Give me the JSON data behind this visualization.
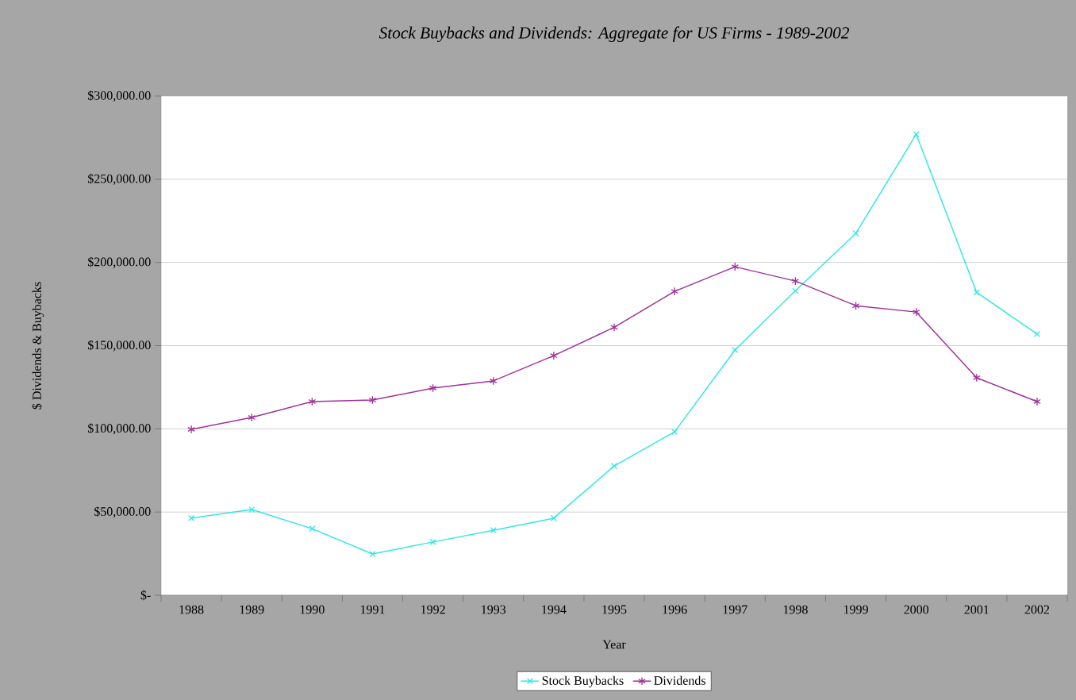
{
  "chart_data": {
    "type": "line",
    "title": "Stock Buybacks and Dividends: Aggregate for US Firms - 1989-2002",
    "xlabel": "Year",
    "ylabel": "$ Dividends & Buybacks",
    "categories": [
      "1988",
      "1989",
      "1990",
      "1991",
      "1992",
      "1993",
      "1994",
      "1995",
      "1996",
      "1997",
      "1998",
      "1999",
      "2000",
      "2001",
      "2002"
    ],
    "series": [
      {
        "name": "Stock Buybacks",
        "color": "#33e6e6",
        "marker": "cross",
        "values": [
          46300,
          51500,
          40000,
          24800,
          32000,
          39000,
          46300,
          77700,
          98200,
          147400,
          183000,
          217500,
          277000,
          182000,
          157000
        ]
      },
      {
        "name": "Dividends",
        "color": "#a0309a",
        "marker": "cross",
        "values": [
          99700,
          106800,
          116400,
          117300,
          124500,
          128800,
          144000,
          161000,
          182600,
          197400,
          188800,
          174000,
          170200,
          130700,
          116400
        ]
      }
    ],
    "ylim": [
      0,
      300000
    ],
    "yticks": [
      {
        "value": 0,
        "label": "$-"
      },
      {
        "value": 50000,
        "label": "$50,000.00"
      },
      {
        "value": 100000,
        "label": "$100,000.00"
      },
      {
        "value": 150000,
        "label": "$150,000.00"
      },
      {
        "value": 200000,
        "label": "$200,000.00"
      },
      {
        "value": 250000,
        "label": "$250,000.00"
      },
      {
        "value": 300000,
        "label": "$300,000.00"
      }
    ],
    "grid": "y",
    "legend": "bottom",
    "line_style": "solid"
  }
}
